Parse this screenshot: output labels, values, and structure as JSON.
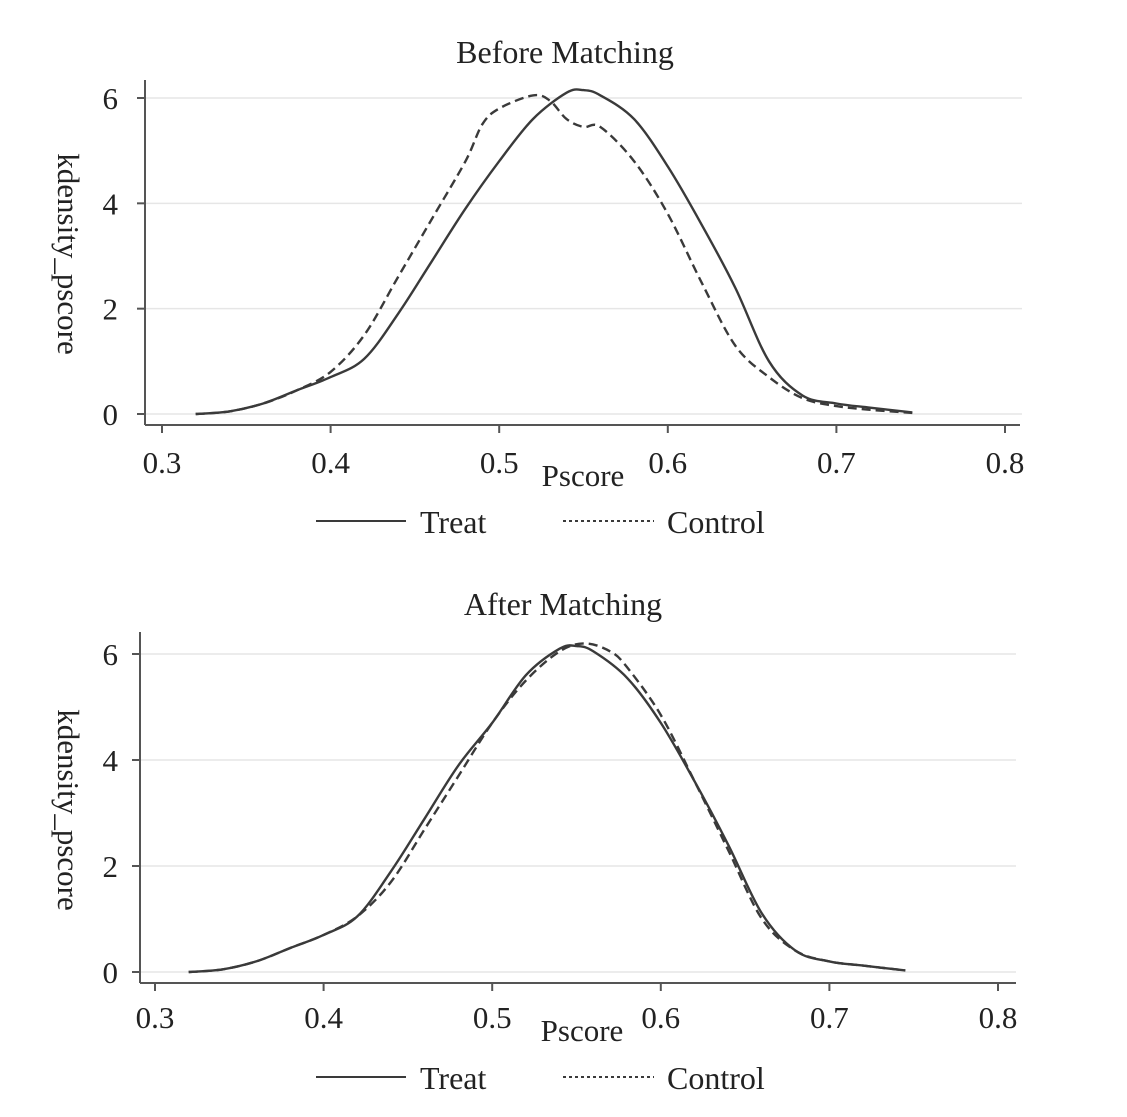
{
  "chart_data": [
    {
      "type": "line",
      "title": "Before Matching",
      "xlabel": "Pscore",
      "ylabel": "kdensity_pscore",
      "xlim": [
        0.3,
        0.8
      ],
      "ylim": [
        0,
        6
      ],
      "xticks": [
        0.3,
        0.4,
        0.5,
        0.6,
        0.7,
        0.8
      ],
      "yticks": [
        0,
        2,
        4,
        6
      ],
      "grid": "horizontal",
      "legend_position": "bottom",
      "series": [
        {
          "name": "Treat",
          "style": "solid",
          "x": [
            0.32,
            0.34,
            0.36,
            0.38,
            0.4,
            0.42,
            0.44,
            0.46,
            0.48,
            0.5,
            0.52,
            0.54,
            0.55,
            0.56,
            0.58,
            0.6,
            0.62,
            0.64,
            0.66,
            0.68,
            0.7,
            0.72,
            0.745
          ],
          "y": [
            0.0,
            0.05,
            0.2,
            0.45,
            0.7,
            1.05,
            1.9,
            2.9,
            3.9,
            4.8,
            5.6,
            6.1,
            6.15,
            6.05,
            5.6,
            4.7,
            3.6,
            2.4,
            1.0,
            0.35,
            0.2,
            0.12,
            0.03
          ]
        },
        {
          "name": "Control",
          "style": "dashed",
          "x": [
            0.32,
            0.34,
            0.36,
            0.38,
            0.4,
            0.42,
            0.44,
            0.46,
            0.48,
            0.49,
            0.5,
            0.52,
            0.53,
            0.54,
            0.55,
            0.56,
            0.58,
            0.6,
            0.62,
            0.64,
            0.66,
            0.68,
            0.7,
            0.72,
            0.745
          ],
          "y": [
            0.0,
            0.05,
            0.2,
            0.45,
            0.8,
            1.5,
            2.6,
            3.7,
            4.8,
            5.5,
            5.8,
            6.05,
            5.95,
            5.6,
            5.45,
            5.45,
            4.8,
            3.8,
            2.5,
            1.3,
            0.7,
            0.3,
            0.15,
            0.08,
            0.02
          ]
        }
      ]
    },
    {
      "type": "line",
      "title": "After Matching",
      "xlabel": "Pscore",
      "ylabel": "kdensity_pscore",
      "xlim": [
        0.3,
        0.8
      ],
      "ylim": [
        0,
        6
      ],
      "xticks": [
        0.3,
        0.4,
        0.5,
        0.6,
        0.7,
        0.8
      ],
      "yticks": [
        0,
        2,
        4,
        6
      ],
      "grid": "horizontal",
      "legend_position": "bottom",
      "series": [
        {
          "name": "Treat",
          "style": "solid",
          "x": [
            0.32,
            0.34,
            0.36,
            0.38,
            0.4,
            0.42,
            0.44,
            0.46,
            0.48,
            0.5,
            0.52,
            0.54,
            0.55,
            0.56,
            0.58,
            0.6,
            0.62,
            0.64,
            0.66,
            0.68,
            0.7,
            0.72,
            0.745
          ],
          "y": [
            0.0,
            0.05,
            0.2,
            0.45,
            0.7,
            1.05,
            1.9,
            2.9,
            3.9,
            4.7,
            5.6,
            6.1,
            6.15,
            6.05,
            5.55,
            4.7,
            3.6,
            2.4,
            1.1,
            0.4,
            0.2,
            0.12,
            0.03
          ]
        },
        {
          "name": "Control",
          "style": "dashed",
          "x": [
            0.32,
            0.34,
            0.36,
            0.38,
            0.4,
            0.42,
            0.44,
            0.46,
            0.48,
            0.5,
            0.52,
            0.54,
            0.555,
            0.57,
            0.58,
            0.6,
            0.62,
            0.64,
            0.66,
            0.68,
            0.7,
            0.72,
            0.745
          ],
          "y": [
            0.0,
            0.05,
            0.2,
            0.45,
            0.7,
            1.05,
            1.7,
            2.7,
            3.7,
            4.7,
            5.5,
            6.05,
            6.2,
            6.05,
            5.75,
            4.85,
            3.6,
            2.3,
            1.0,
            0.4,
            0.2,
            0.12,
            0.03
          ]
        }
      ]
    }
  ]
}
